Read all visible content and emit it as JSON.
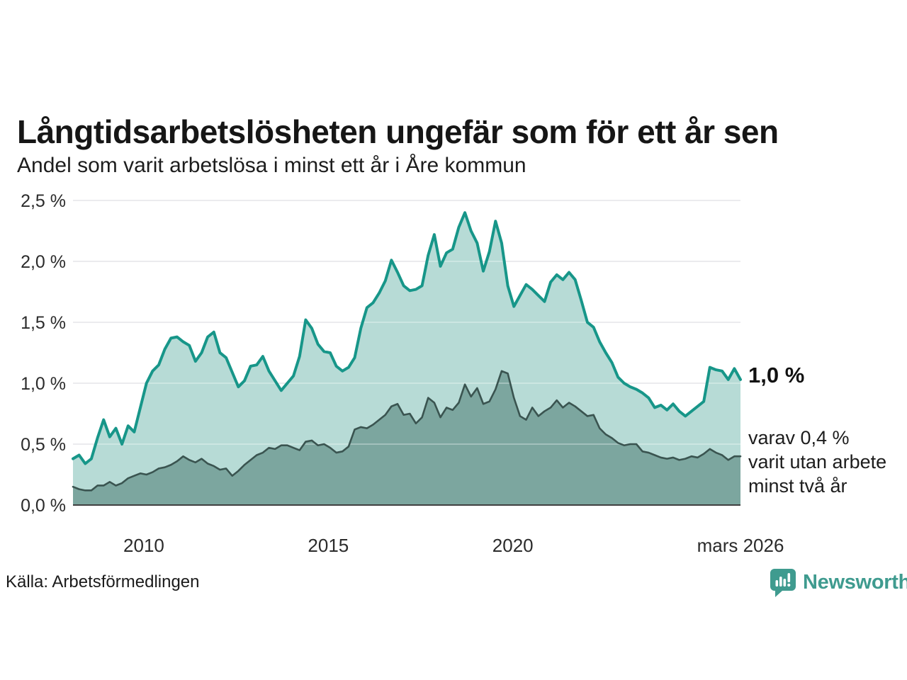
{
  "title": "Långtidsarbetslösheten ungefär som för ett år sen",
  "subtitle": "Andel som varit arbetslösa i minst ett år i Åre kommun",
  "annotations": {
    "end_value_label": "1,0 %",
    "note_lines": [
      "varav 0,4 %",
      "varit utan arbete",
      "minst två år"
    ]
  },
  "footer": {
    "source": "Källa: Arbetsförmedlingen",
    "brand": "Newsworthy"
  },
  "colors": {
    "title_text": "#161616",
    "body_text": "#1d1d1d",
    "axis_text": "#2b2b2b",
    "gridline": "#e2e3e7",
    "baseline": "#404040",
    "series1_line": "#179689",
    "series1_fill": "#b7dbd6",
    "series2_line": "#3a5450",
    "series2_fill": "#7ca69f",
    "brand_teal": "#3f9b8f"
  },
  "chart_data": {
    "type": "area",
    "title": "Långtidsarbetslösheten ungefär som för ett år sen",
    "subtitle": "Andel som varit arbetslösa i minst ett år i Åre kommun",
    "x_domain": [
      2008.08,
      2026.17
    ],
    "ylim": [
      0,
      2.5
    ],
    "grid": "horizontal",
    "yticks": [
      {
        "value": 0.0,
        "label": "0,0 %"
      },
      {
        "value": 0.5,
        "label": "0,5 %"
      },
      {
        "value": 1.0,
        "label": "1,0 %"
      },
      {
        "value": 1.5,
        "label": "1,5 %"
      },
      {
        "value": 2.0,
        "label": "2,0 %"
      },
      {
        "value": 2.5,
        "label": "2,5 %"
      }
    ],
    "xticks": [
      {
        "value": 2010,
        "label": "2010"
      },
      {
        "value": 2015,
        "label": "2015"
      },
      {
        "value": 2020,
        "label": "2020"
      },
      {
        "value": 2026.17,
        "label": "mars 2026"
      }
    ],
    "series": [
      {
        "name": "arbetslösa minst ett år",
        "end_value": 1.0,
        "values": [
          0.38,
          0.41,
          0.34,
          0.38,
          0.55,
          0.7,
          0.56,
          0.63,
          0.5,
          0.65,
          0.6,
          0.8,
          1.0,
          1.1,
          1.15,
          1.28,
          1.37,
          1.38,
          1.34,
          1.31,
          1.18,
          1.25,
          1.38,
          1.42,
          1.25,
          1.21,
          1.09,
          0.97,
          1.02,
          1.14,
          1.15,
          1.22,
          1.1,
          1.02,
          0.94,
          1.0,
          1.06,
          1.22,
          1.52,
          1.45,
          1.32,
          1.26,
          1.25,
          1.14,
          1.1,
          1.13,
          1.21,
          1.45,
          1.62,
          1.66,
          1.74,
          1.84,
          2.01,
          1.91,
          1.8,
          1.76,
          1.77,
          1.8,
          2.05,
          2.22,
          1.96,
          2.07,
          2.1,
          2.28,
          2.4,
          2.25,
          2.15,
          1.92,
          2.08,
          2.33,
          2.15,
          1.8,
          1.63,
          1.72,
          1.81,
          1.77,
          1.72,
          1.67,
          1.83,
          1.89,
          1.85,
          1.91,
          1.85,
          1.68,
          1.5,
          1.46,
          1.34,
          1.25,
          1.17,
          1.05,
          1.0,
          0.97,
          0.95,
          0.92,
          0.88,
          0.8,
          0.82,
          0.78,
          0.83,
          0.77,
          0.73,
          0.77,
          0.81,
          0.85,
          1.13,
          1.11,
          1.1,
          1.03,
          1.12,
          1.03
        ]
      },
      {
        "name": "varav arbetslösa minst två år",
        "end_value": 0.4,
        "values": [
          0.15,
          0.13,
          0.12,
          0.12,
          0.16,
          0.16,
          0.19,
          0.16,
          0.18,
          0.22,
          0.24,
          0.26,
          0.25,
          0.27,
          0.3,
          0.31,
          0.33,
          0.36,
          0.4,
          0.37,
          0.35,
          0.38,
          0.34,
          0.32,
          0.29,
          0.3,
          0.24,
          0.28,
          0.33,
          0.37,
          0.41,
          0.43,
          0.47,
          0.46,
          0.49,
          0.49,
          0.47,
          0.45,
          0.52,
          0.53,
          0.49,
          0.5,
          0.47,
          0.43,
          0.44,
          0.48,
          0.62,
          0.64,
          0.63,
          0.66,
          0.7,
          0.74,
          0.81,
          0.83,
          0.74,
          0.75,
          0.67,
          0.72,
          0.88,
          0.84,
          0.72,
          0.8,
          0.78,
          0.84,
          0.99,
          0.89,
          0.96,
          0.83,
          0.85,
          0.95,
          1.1,
          1.08,
          0.88,
          0.73,
          0.7,
          0.8,
          0.73,
          0.77,
          0.8,
          0.86,
          0.8,
          0.84,
          0.81,
          0.77,
          0.73,
          0.74,
          0.63,
          0.58,
          0.55,
          0.51,
          0.49,
          0.5,
          0.5,
          0.44,
          0.43,
          0.41,
          0.39,
          0.38,
          0.39,
          0.37,
          0.38,
          0.4,
          0.39,
          0.42,
          0.46,
          0.43,
          0.41,
          0.37,
          0.4,
          0.4
        ]
      }
    ]
  }
}
